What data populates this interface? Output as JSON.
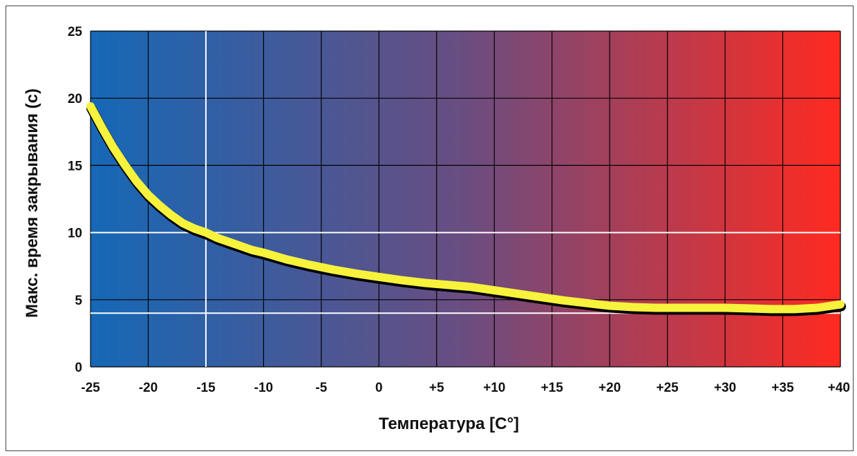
{
  "chart_data": {
    "type": "line",
    "title": "",
    "xlabel": "Температура [C°]",
    "ylabel": "Макс. время закрывания (с)",
    "xlim": [
      -25,
      40
    ],
    "ylim": [
      0,
      25
    ],
    "x_ticks": [
      -25,
      -20,
      -15,
      -10,
      -5,
      0,
      5,
      10,
      15,
      20,
      25,
      30,
      35,
      40
    ],
    "x_tick_labels": [
      "-25",
      "-20",
      "-15",
      "-10",
      "-5",
      "0",
      "+5",
      "+10",
      "+15",
      "+20",
      "+25",
      "+30",
      "+35",
      "+40"
    ],
    "y_ticks": [
      0,
      5,
      10,
      15,
      20,
      25
    ],
    "y_tick_labels": [
      "0",
      "5",
      "10",
      "15",
      "20",
      "25"
    ],
    "grid": true,
    "highlight_lines": {
      "x": [
        -15
      ],
      "y": [
        10,
        4
      ]
    },
    "background_gradient": [
      "#1668b6",
      "#6a4d80",
      "#ff2a20"
    ],
    "series_color": "#f7f23c",
    "series": [
      {
        "x": [
          -25,
          -24,
          -23,
          -22,
          -21,
          -20,
          -19,
          -18,
          -17,
          -16,
          -15,
          -14,
          -13,
          -12,
          -11,
          -10,
          -8,
          -6,
          -4,
          -2,
          0,
          2,
          4,
          6,
          8,
          10,
          12,
          14,
          16,
          18,
          20,
          22,
          24,
          26,
          28,
          30,
          32,
          34,
          36,
          38,
          40
        ],
        "y": [
          19.4,
          17.8,
          16.3,
          15.0,
          13.8,
          12.8,
          12.0,
          11.3,
          10.7,
          10.3,
          10.0,
          9.6,
          9.3,
          9.0,
          8.7,
          8.5,
          8.0,
          7.6,
          7.25,
          6.95,
          6.7,
          6.45,
          6.25,
          6.1,
          5.95,
          5.7,
          5.45,
          5.2,
          4.95,
          4.75,
          4.55,
          4.45,
          4.4,
          4.4,
          4.4,
          4.4,
          4.35,
          4.3,
          4.3,
          4.4,
          4.65
        ]
      }
    ]
  }
}
